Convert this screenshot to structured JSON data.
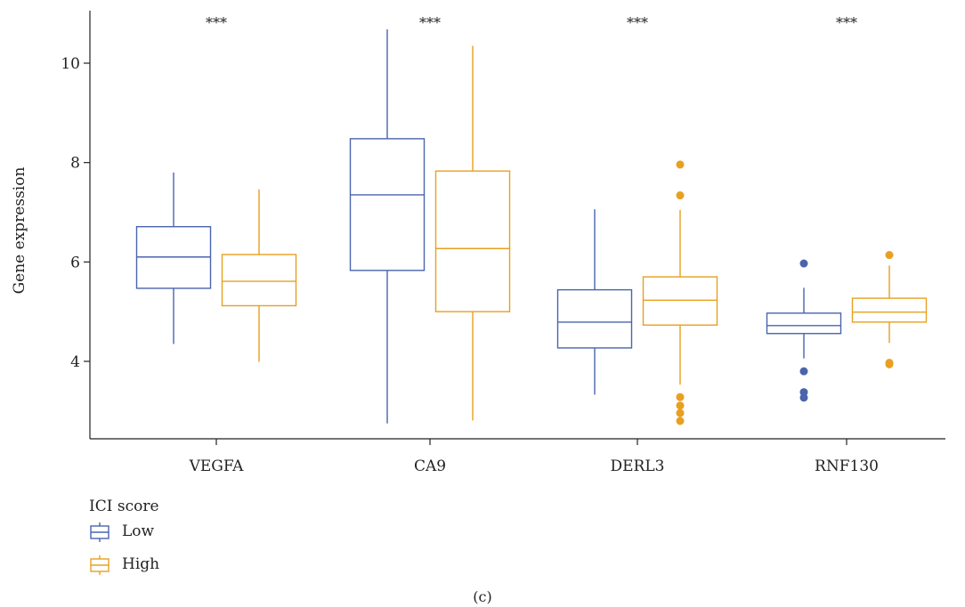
{
  "chart_data": {
    "type": "box",
    "ylabel": "Gene expression",
    "xlabel": "",
    "ylim": [
      2.4,
      10.9
    ],
    "yticks": [
      4,
      6,
      8,
      10
    ],
    "categories": [
      "VEGFA",
      "CA9",
      "DERL3",
      "RNF130"
    ],
    "significance": [
      "***",
      "***",
      "***",
      "***"
    ],
    "legend": {
      "title": "ICI score",
      "position": "bottom-left",
      "entries": [
        "Low",
        "High"
      ]
    },
    "caption": "(c)",
    "series": [
      {
        "name": "Low",
        "color": "#4a64ad",
        "boxes": [
          {
            "min": 4.35,
            "q1": 5.47,
            "median": 6.1,
            "q3": 6.71,
            "max": 7.8,
            "outliers": []
          },
          {
            "min": 2.75,
            "q1": 5.83,
            "median": 7.35,
            "q3": 8.48,
            "max": 10.68,
            "outliers": []
          },
          {
            "min": 3.33,
            "q1": 4.27,
            "median": 4.79,
            "q3": 5.44,
            "max": 7.06,
            "outliers": []
          },
          {
            "min": 4.06,
            "q1": 4.56,
            "median": 4.72,
            "q3": 4.97,
            "max": 5.48,
            "outliers": [
              5.97,
              3.8,
              3.38,
              3.27
            ]
          }
        ]
      },
      {
        "name": "High",
        "color": "#e8a020",
        "boxes": [
          {
            "min": 3.99,
            "q1": 5.12,
            "median": 5.61,
            "q3": 6.15,
            "max": 7.46,
            "outliers": []
          },
          {
            "min": 2.81,
            "q1": 5.0,
            "median": 6.27,
            "q3": 7.83,
            "max": 10.35,
            "outliers": []
          },
          {
            "min": 3.53,
            "q1": 4.73,
            "median": 5.23,
            "q3": 5.7,
            "max": 7.05,
            "outliers": [
              7.96,
              7.34,
              3.28,
              3.11,
              2.96,
              2.8
            ]
          },
          {
            "min": 4.37,
            "q1": 4.79,
            "median": 4.99,
            "q3": 5.27,
            "max": 5.93,
            "outliers": [
              6.14,
              3.97,
              3.94
            ]
          }
        ]
      }
    ]
  }
}
